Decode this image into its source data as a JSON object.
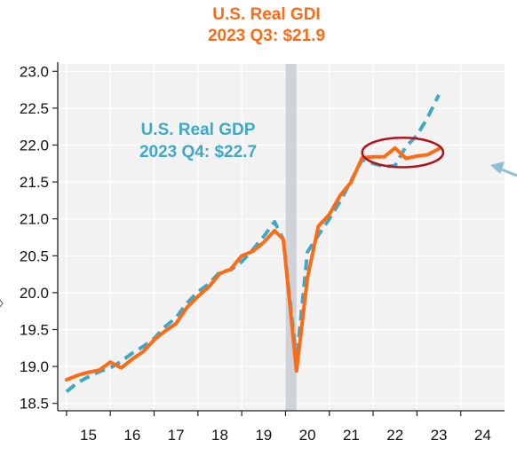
{
  "chart_data": {
    "type": "line",
    "title": "U.S. Real GDI",
    "subtitle": "2023 Q3: $21.9",
    "annotation": {
      "line1": "U.S. Real GDP",
      "line2": "2023 Q4: $22.7"
    },
    "xlabel": "",
    "ylabel": "",
    "xlim": [
      2014.8,
      2025.0
    ],
    "ylim": [
      18.4,
      23.1
    ],
    "x_ticks": [
      2015,
      2016,
      2017,
      2018,
      2019,
      2020,
      2021,
      2022,
      2023,
      2024
    ],
    "x_tick_labels": [
      "15",
      "16",
      "17",
      "18",
      "19",
      "20",
      "21",
      "22",
      "23",
      "24"
    ],
    "y_ticks": [
      18.5,
      19.0,
      19.5,
      20.0,
      20.5,
      21.0,
      21.5,
      22.0,
      22.5,
      23.0
    ],
    "y_tick_labels": [
      "18.5",
      "19.0",
      "19.5",
      "20.0",
      "20.5",
      "21.0",
      "21.5",
      "22.0",
      "22.5",
      "23.0"
    ],
    "grid": true,
    "recession_shading": {
      "x": [
        2020.0,
        2020.25
      ]
    },
    "highlight_ellipse": {
      "x": [
        2021.75,
        2023.6
      ],
      "y": [
        21.7,
        22.1
      ]
    },
    "series": [
      {
        "key": "gdi",
        "color": "#ff6a13",
        "style": "solid",
        "points": [
          [
            2015.0,
            18.82
          ],
          [
            2015.25,
            18.88
          ],
          [
            2015.5,
            18.92
          ],
          [
            2015.75,
            18.95
          ],
          [
            2016.0,
            19.06
          ],
          [
            2016.25,
            18.98
          ],
          [
            2016.5,
            19.1
          ],
          [
            2016.75,
            19.2
          ],
          [
            2017.0,
            19.36
          ],
          [
            2017.25,
            19.48
          ],
          [
            2017.5,
            19.58
          ],
          [
            2017.75,
            19.8
          ],
          [
            2018.0,
            19.95
          ],
          [
            2018.25,
            20.08
          ],
          [
            2018.5,
            20.26
          ],
          [
            2018.75,
            20.32
          ],
          [
            2019.0,
            20.5
          ],
          [
            2019.25,
            20.56
          ],
          [
            2019.5,
            20.68
          ],
          [
            2019.75,
            20.84
          ],
          [
            2019.95,
            20.72
          ],
          [
            2020.25,
            18.94
          ],
          [
            2020.5,
            20.2
          ],
          [
            2020.75,
            20.9
          ],
          [
            2021.0,
            21.06
          ],
          [
            2021.25,
            21.32
          ],
          [
            2021.5,
            21.5
          ],
          [
            2021.75,
            21.83
          ],
          [
            2022.0,
            21.84
          ],
          [
            2022.25,
            21.84
          ],
          [
            2022.5,
            21.96
          ],
          [
            2022.75,
            21.82
          ],
          [
            2023.0,
            21.85
          ],
          [
            2023.25,
            21.87
          ],
          [
            2023.5,
            21.95
          ]
        ]
      },
      {
        "key": "gdp",
        "color": "#3da9c9",
        "style": "dashed",
        "points": [
          [
            2015.0,
            18.66
          ],
          [
            2015.25,
            18.78
          ],
          [
            2015.5,
            18.86
          ],
          [
            2015.75,
            18.93
          ],
          [
            2016.0,
            18.98
          ],
          [
            2016.25,
            19.07
          ],
          [
            2016.5,
            19.18
          ],
          [
            2016.75,
            19.27
          ],
          [
            2017.0,
            19.38
          ],
          [
            2017.25,
            19.54
          ],
          [
            2017.5,
            19.66
          ],
          [
            2017.75,
            19.86
          ],
          [
            2018.0,
            20.01
          ],
          [
            2018.25,
            20.12
          ],
          [
            2018.5,
            20.28
          ],
          [
            2018.75,
            20.31
          ],
          [
            2019.0,
            20.42
          ],
          [
            2019.25,
            20.58
          ],
          [
            2019.5,
            20.76
          ],
          [
            2019.75,
            20.96
          ],
          [
            2019.95,
            20.72
          ],
          [
            2020.25,
            19.08
          ],
          [
            2020.5,
            20.55
          ],
          [
            2020.75,
            20.78
          ],
          [
            2021.0,
            21.0
          ],
          [
            2021.25,
            21.24
          ],
          [
            2021.5,
            21.52
          ],
          [
            2021.75,
            21.8
          ],
          [
            2022.0,
            21.75
          ],
          [
            2022.25,
            21.71
          ],
          [
            2022.5,
            21.72
          ],
          [
            2022.75,
            21.98
          ],
          [
            2023.0,
            22.13
          ],
          [
            2023.25,
            22.38
          ],
          [
            2023.5,
            22.68
          ]
        ]
      }
    ]
  }
}
